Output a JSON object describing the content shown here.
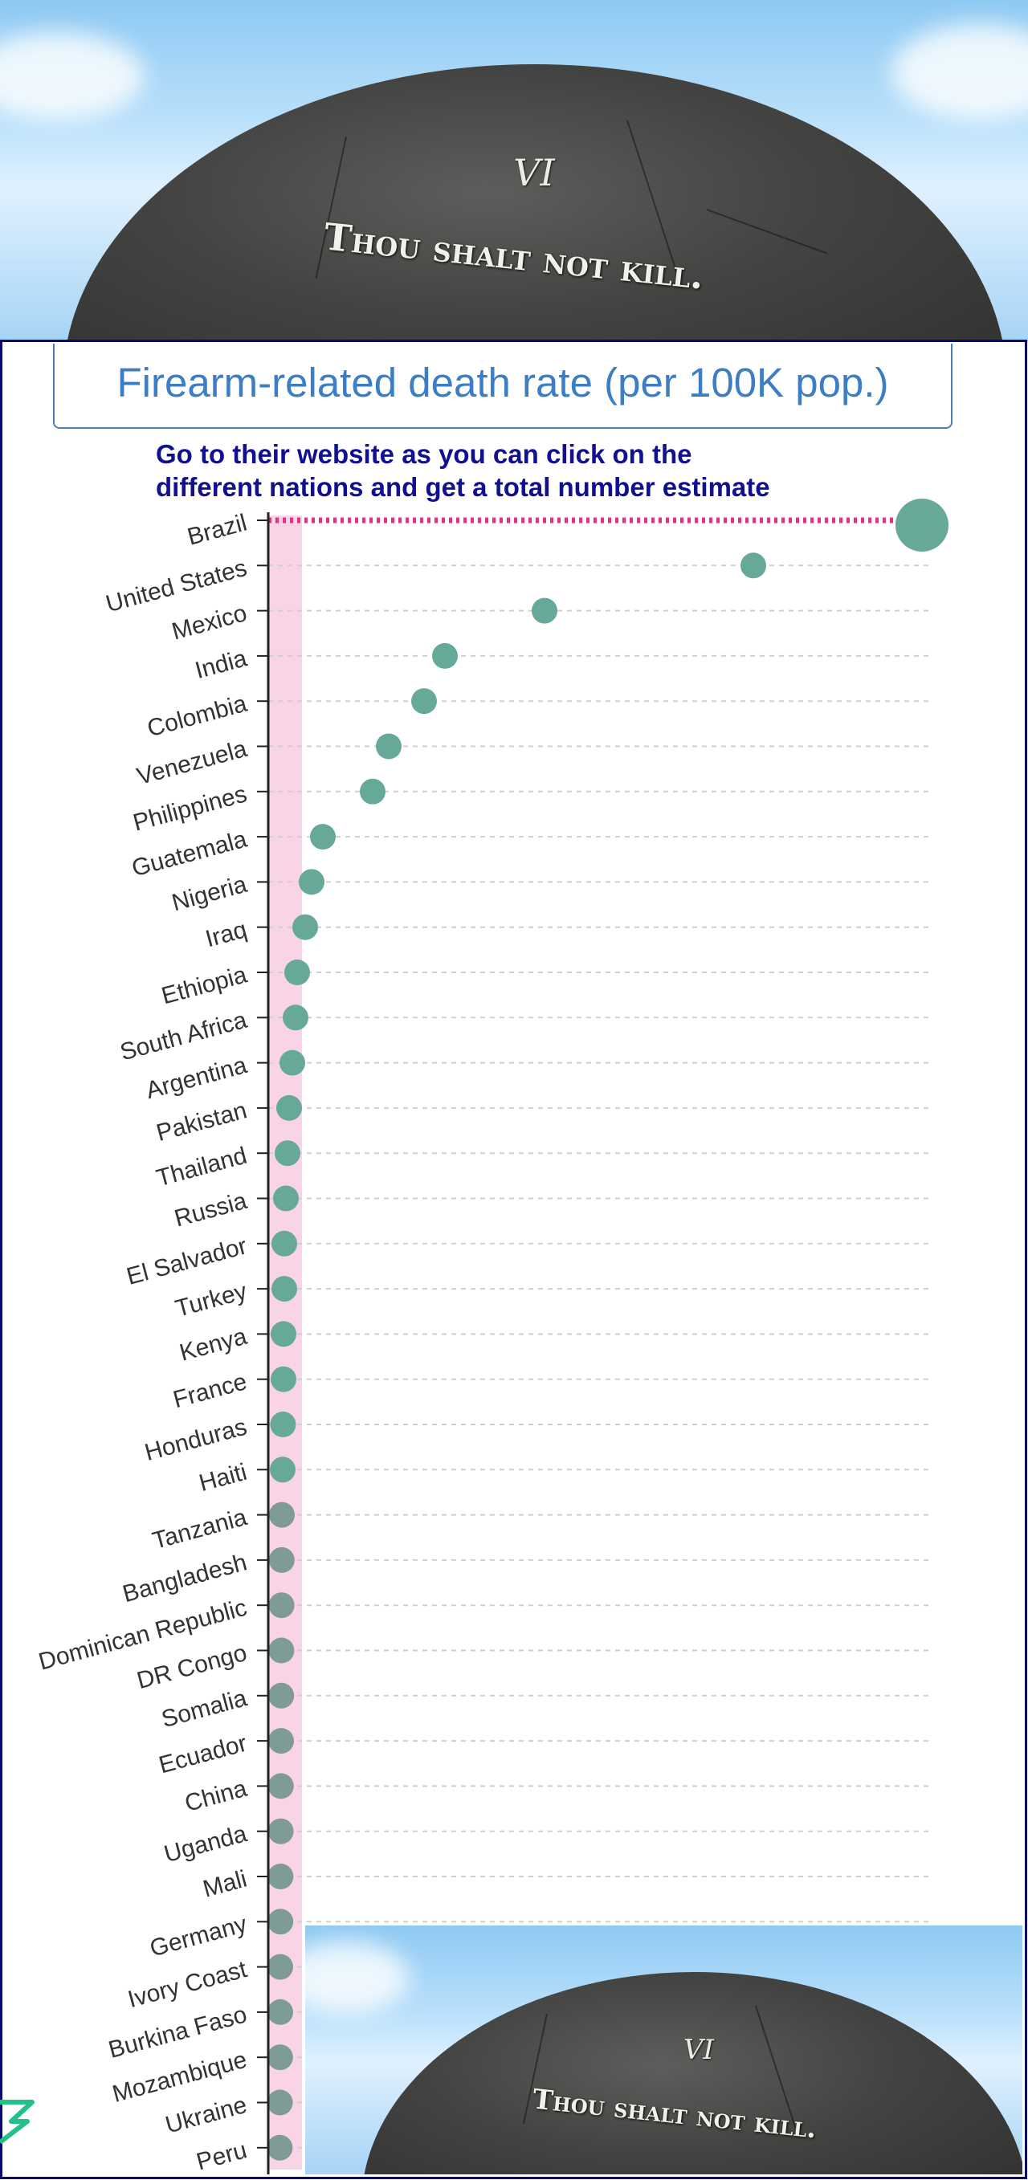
{
  "header_image": {
    "numeral": "VI",
    "commandment": "Thou shalt not kill."
  },
  "footer_image": {
    "numeral": "VI",
    "commandment": "Thou shalt not kill."
  },
  "chart_title": "Firearm-related death rate (per 100K pop.)",
  "note_lines": [
    "Go to their website as you can click on the",
    "different nations and get a total number estimate"
  ],
  "colors": {
    "point": "#66a998",
    "point_gray": "#7e9b95",
    "highlight_line": "#e8307e",
    "highlight_band": "#f9d4e6",
    "axis": "#222222",
    "grid": "#cfcfcf"
  },
  "chart_data": {
    "type": "scatter",
    "title": "Firearm-related death rate (per 100K pop.)",
    "xlabel": "",
    "ylabel": "",
    "xlim": [
      0,
      40.5
    ],
    "grid": true,
    "highlighted": "Brazil",
    "categories": [
      "Brazil",
      "United States",
      "Mexico",
      "India",
      "Colombia",
      "Venezuela",
      "Philippines",
      "Guatemala",
      "Nigeria",
      "Iraq",
      "Ethiopia",
      "South Africa",
      "Argentina",
      "Pakistan",
      "Thailand",
      "Russia",
      "El Salvador",
      "Turkey",
      "Kenya",
      "France",
      "Honduras",
      "Haiti",
      "Tanzania",
      "Bangladesh",
      "Dominican Republic",
      "DR Congo",
      "Somalia",
      "Ecuador",
      "China",
      "Uganda",
      "Mali",
      "Germany",
      "Ivory Coast",
      "Burkina Faso",
      "Mozambique",
      "Ukraine",
      "Peru"
    ],
    "values": [
      40.0,
      29.5,
      16.5,
      10.3,
      9.0,
      6.8,
      5.8,
      2.7,
      2.0,
      1.6,
      1.1,
      1.0,
      0.8,
      0.6,
      0.5,
      0.4,
      0.3,
      0.3,
      0.25,
      0.25,
      0.22,
      0.2,
      0.15,
      0.14,
      0.13,
      0.12,
      0.11,
      0.1,
      0.09,
      0.08,
      0.07,
      0.06,
      0.05,
      0.05,
      0.04,
      0.03,
      0.02
    ]
  }
}
